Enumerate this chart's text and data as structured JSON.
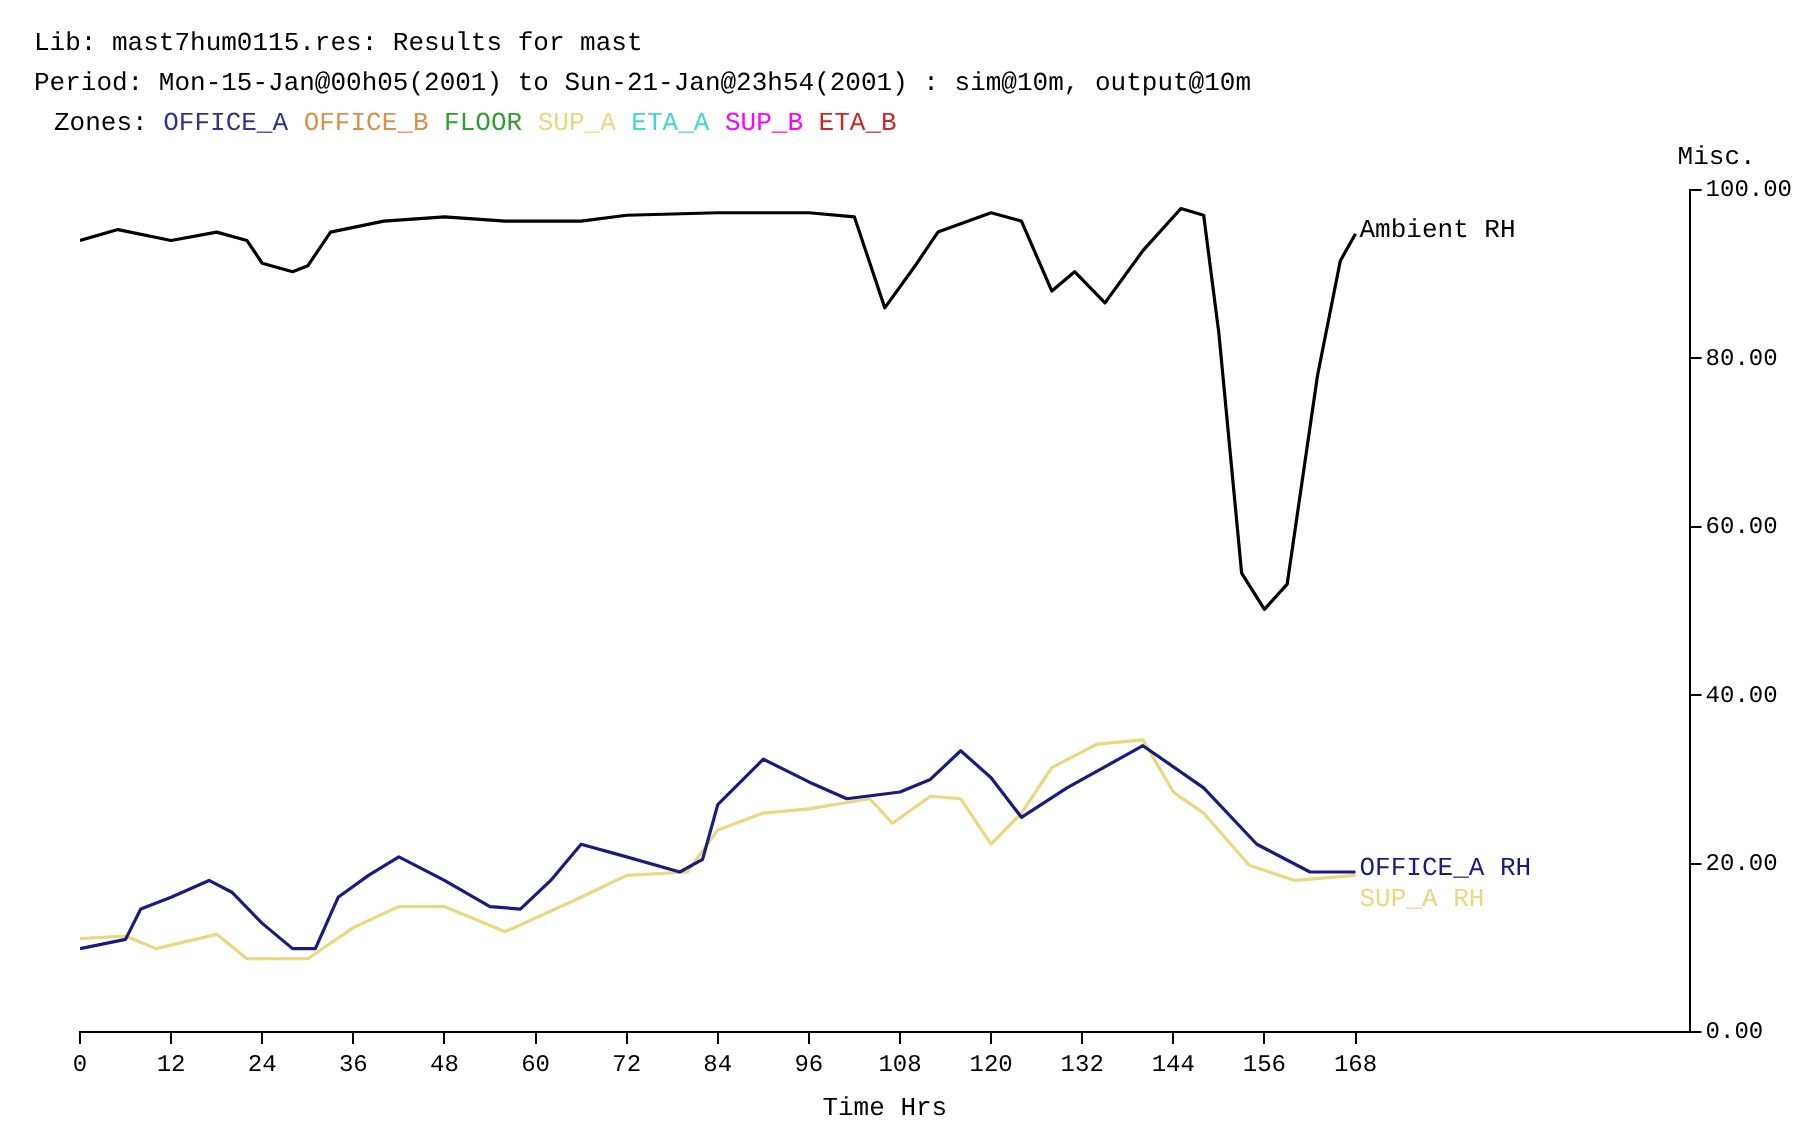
{
  "chart_data": {
    "type": "line",
    "title": "Lib: mast7hum0115.res: Results for mast",
    "subtitle": "Period: Mon-15-Jan@00h05(2001) to Sun-21-Jan@23h54(2001) : sim@10m, output@10m",
    "annotations": [
      "Zones:",
      "OFFICE_A",
      "OFFICE_B",
      "FLOOR",
      "SUP_A",
      "ETA_A",
      "SUP_B",
      "ETA_B"
    ],
    "xlabel": "Time Hrs",
    "ylabel": "Misc.",
    "xlim": [
      0,
      212
    ],
    "xticks": [
      0,
      12,
      24,
      36,
      48,
      60,
      72,
      84,
      96,
      108,
      120,
      132,
      144,
      156,
      168
    ],
    "ylim": [
      0,
      100
    ],
    "yticks": [
      {
        "value": 0,
        "label": "0.00"
      },
      {
        "value": 20,
        "label": "20.00"
      },
      {
        "value": 40,
        "label": "40.00"
      },
      {
        "value": 60,
        "label": "60.00"
      },
      {
        "value": 80,
        "label": "80.00"
      },
      {
        "value": 100,
        "label": "100.00"
      }
    ],
    "grid": false,
    "legend": false,
    "series": [
      {
        "name": "Ambient RH",
        "color": "#000000",
        "x": [
          0,
          5,
          12,
          18,
          22,
          24,
          28,
          30,
          33,
          40,
          48,
          56,
          66,
          72,
          84,
          96,
          102,
          106,
          110,
          113,
          120,
          124,
          128,
          131,
          135,
          140,
          145,
          148,
          150,
          153,
          156,
          159,
          163,
          166,
          168
        ],
        "values": [
          94,
          95.3,
          94,
          95,
          94,
          91.3,
          90.3,
          91,
          95,
          96.3,
          96.8,
          96.3,
          96.3,
          97,
          97.3,
          97.3,
          96.8,
          86,
          91,
          95,
          97.3,
          96.3,
          88,
          90.3,
          86.6,
          92.8,
          97.8,
          97,
          83,
          54.5,
          50.2,
          53.2,
          78,
          91.6,
          94.8
        ]
      },
      {
        "name": "OFFICE_A RH",
        "color": "#1a1a80",
        "x": [
          0,
          6,
          8,
          12,
          17,
          20,
          24,
          28,
          31,
          34,
          38,
          42,
          48,
          54,
          58,
          62,
          66,
          72,
          79,
          82,
          84,
          90,
          96,
          101,
          108,
          112,
          116,
          120,
          124,
          130,
          140,
          148,
          155,
          162,
          168
        ],
        "values": [
          9.9,
          11,
          14.6,
          16,
          18,
          16.6,
          12.9,
          9.9,
          9.9,
          16,
          18.6,
          20.8,
          18,
          14.9,
          14.6,
          18,
          22.3,
          20.8,
          19,
          20.5,
          27,
          32.4,
          29.7,
          27.7,
          28.5,
          30,
          33.4,
          30.2,
          25.5,
          29,
          34,
          29,
          22.3,
          19,
          19
        ]
      },
      {
        "name": "SUP_A RH",
        "color": "#e8d880",
        "x": [
          0,
          6,
          10,
          18,
          22,
          30,
          36,
          42,
          48,
          56,
          66,
          72,
          80,
          84,
          90,
          96,
          104,
          107,
          112,
          116,
          120,
          124,
          128,
          134,
          140,
          144,
          148,
          154,
          160,
          168
        ],
        "values": [
          11.1,
          11.4,
          9.9,
          11.6,
          8.7,
          8.7,
          12.4,
          14.9,
          14.9,
          11.9,
          16,
          18.6,
          19,
          24,
          26,
          26.5,
          27.7,
          24.8,
          28,
          27.7,
          22.3,
          26,
          31.4,
          34.2,
          34.7,
          28.5,
          26,
          19.8,
          18,
          18.6
        ]
      }
    ]
  }
}
